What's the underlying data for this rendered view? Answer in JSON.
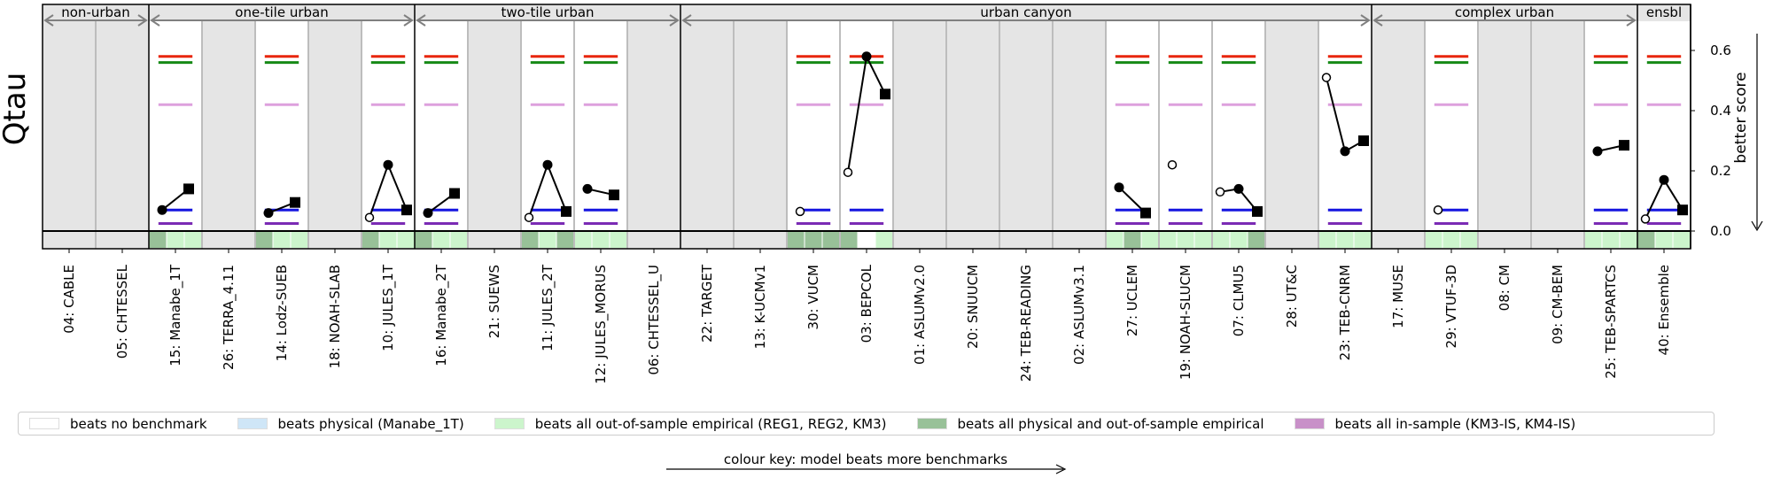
{
  "chart_data": {
    "type": "scatter",
    "ylabel_left": "Qtau",
    "ylabel_right": "better score",
    "ylim": [
      -0.07,
      0.72
    ],
    "yticks": [
      0.0,
      0.2,
      0.4,
      0.6
    ],
    "ytick_labels": [
      "0.0",
      "0.2",
      "0.4",
      "0.6"
    ],
    "groups": [
      {
        "label": "non-urban",
        "start": 0,
        "end": 2
      },
      {
        "label": "one-tile urban",
        "start": 2,
        "end": 7
      },
      {
        "label": "two-tile urban",
        "start": 7,
        "end": 12
      },
      {
        "label": "urban canyon",
        "start": 12,
        "end": 25
      },
      {
        "label": "complex urban",
        "start": 25,
        "end": 30
      },
      {
        "label": "ensbl",
        "start": 30,
        "end": 31
      }
    ],
    "benchmarks": {
      "red": 0.58,
      "green": 0.56,
      "plum": 0.42,
      "blue": 0.07,
      "purple": 0.025
    },
    "colors": {
      "panel_grey": "#e5e5e5",
      "red": "#e8250c",
      "green": "#168a16",
      "plum": "#dda0dd",
      "blue": "#1515e0",
      "purple": "#7b2bb5",
      "beats_none": "#ffffff",
      "beats_physical": "#cfe6f7",
      "beats_oos": "#ccf5cc",
      "beats_phys_oos": "#98c198",
      "beats_insample": "#c890c8"
    },
    "models": [
      {
        "name": "04: CABLE",
        "active": false,
        "points": [],
        "band": []
      },
      {
        "name": "05: CHTESSEL",
        "active": false,
        "points": [],
        "band": []
      },
      {
        "name": "15: Manabe_1T",
        "active": true,
        "points": [
          {
            "m": "filled",
            "v": 0.07
          },
          {
            "m": "square",
            "v": 0.14
          }
        ],
        "band": [
          "p",
          "o",
          "o"
        ]
      },
      {
        "name": "26: TERRA_4.11",
        "active": false,
        "points": [],
        "band": []
      },
      {
        "name": "14: Lodz-SUEB",
        "active": true,
        "points": [
          {
            "m": "filled",
            "v": 0.06
          },
          {
            "m": "square",
            "v": 0.095
          }
        ],
        "band": [
          "p",
          "o",
          "o"
        ]
      },
      {
        "name": "18: NOAH-SLAB",
        "active": false,
        "points": [],
        "band": []
      },
      {
        "name": "10: JULES_1T",
        "active": true,
        "points": [
          {
            "m": "open",
            "v": 0.045
          },
          {
            "m": "filled",
            "v": 0.22
          },
          {
            "m": "square",
            "v": 0.07
          }
        ],
        "band": [
          "p",
          "o",
          "o"
        ]
      },
      {
        "name": "16: Manabe_2T",
        "active": true,
        "points": [
          {
            "m": "filled",
            "v": 0.06
          },
          {
            "m": "square",
            "v": 0.125
          }
        ],
        "band": [
          "p",
          "o",
          "o"
        ]
      },
      {
        "name": "21: SUEWS",
        "active": false,
        "points": [],
        "band": []
      },
      {
        "name": "11: JULES_2T",
        "active": true,
        "points": [
          {
            "m": "open",
            "v": 0.045
          },
          {
            "m": "filled",
            "v": 0.22
          },
          {
            "m": "square",
            "v": 0.065
          }
        ],
        "band": [
          "p",
          "o",
          "p"
        ]
      },
      {
        "name": "12: JULES_MORUS",
        "active": true,
        "points": [
          {
            "m": "filled",
            "v": 0.14
          },
          {
            "m": "square",
            "v": 0.12
          }
        ],
        "band": [
          "o",
          "o",
          "o"
        ]
      },
      {
        "name": "06: CHTESSEL_U",
        "active": false,
        "points": [],
        "band": []
      },
      {
        "name": "22: TARGET",
        "active": false,
        "points": [],
        "band": []
      },
      {
        "name": "13: K-UCMv1",
        "active": false,
        "points": [],
        "band": []
      },
      {
        "name": "30: VUCM",
        "active": true,
        "points": [
          {
            "m": "open",
            "v": 0.065
          }
        ],
        "band": [
          "p",
          "p",
          "p"
        ]
      },
      {
        "name": "03: BEPCOL",
        "active": true,
        "points": [
          {
            "m": "open",
            "v": 0.195
          },
          {
            "m": "filled",
            "v": 0.58
          },
          {
            "m": "square",
            "v": 0.455
          }
        ],
        "band": [
          "p",
          "n",
          "o"
        ]
      },
      {
        "name": "01: ASLUMv2.0",
        "active": false,
        "points": [],
        "band": []
      },
      {
        "name": "20: SNUUCM",
        "active": false,
        "points": [],
        "band": []
      },
      {
        "name": "24: TEB-READING",
        "active": false,
        "points": [],
        "band": []
      },
      {
        "name": "02: ASLUMv3.1",
        "active": false,
        "points": [],
        "band": []
      },
      {
        "name": "27: UCLEM",
        "active": true,
        "points": [
          {
            "m": "filled",
            "v": 0.145
          },
          {
            "m": "square",
            "v": 0.06
          }
        ],
        "band": [
          "o",
          "p",
          "o"
        ]
      },
      {
        "name": "19: NOAH-SLUCM",
        "active": true,
        "points": [
          {
            "m": "open",
            "v": 0.22
          }
        ],
        "band": [
          "o",
          "o",
          "o"
        ]
      },
      {
        "name": "07: CLMU5",
        "active": true,
        "points": [
          {
            "m": "open",
            "v": 0.13
          },
          {
            "m": "filled",
            "v": 0.14
          },
          {
            "m": "square",
            "v": 0.065
          }
        ],
        "band": [
          "o",
          "o",
          "p"
        ]
      },
      {
        "name": "28: UT&C",
        "active": false,
        "points": [],
        "band": []
      },
      {
        "name": "23: TEB-CNRM",
        "active": true,
        "points": [
          {
            "m": "open",
            "v": 0.51
          },
          {
            "m": "filled",
            "v": 0.265
          },
          {
            "m": "square",
            "v": 0.3
          }
        ],
        "band": [
          "o",
          "o",
          "o"
        ]
      },
      {
        "name": "17: MUSE",
        "active": false,
        "points": [],
        "band": []
      },
      {
        "name": "29: VTUF-3D",
        "active": true,
        "points": [
          {
            "m": "open",
            "v": 0.07
          }
        ],
        "band": [
          "o",
          "o",
          "o"
        ]
      },
      {
        "name": "08: CM",
        "active": false,
        "points": [],
        "band": []
      },
      {
        "name": "09: CM-BEM",
        "active": false,
        "points": [],
        "band": []
      },
      {
        "name": "25: TEB-SPARTCS",
        "active": true,
        "points": [
          {
            "m": "filled",
            "v": 0.265
          },
          {
            "m": "square",
            "v": 0.285
          }
        ],
        "band": [
          "o",
          "o",
          "o"
        ]
      },
      {
        "name": "40: Ensemble",
        "active": true,
        "points": [
          {
            "m": "open",
            "v": 0.04
          },
          {
            "m": "filled",
            "v": 0.17
          },
          {
            "m": "square",
            "v": 0.07
          }
        ],
        "band": [
          "p",
          "o",
          "o"
        ]
      }
    ],
    "legend": [
      {
        "label": "beats no benchmark",
        "color_key": "beats_none"
      },
      {
        "label": "beats physical (Manabe_1T)",
        "color_key": "beats_physical"
      },
      {
        "label": "beats all out-of-sample empirical (REG1, REG2, KM3)",
        "color_key": "beats_oos"
      },
      {
        "label": "beats all physical and out-of-sample empirical",
        "color_key": "beats_phys_oos"
      },
      {
        "label": "beats all in-sample (KM3-IS, KM4-IS)",
        "color_key": "beats_insample"
      }
    ],
    "color_key_caption": "colour key: model beats more benchmarks"
  }
}
